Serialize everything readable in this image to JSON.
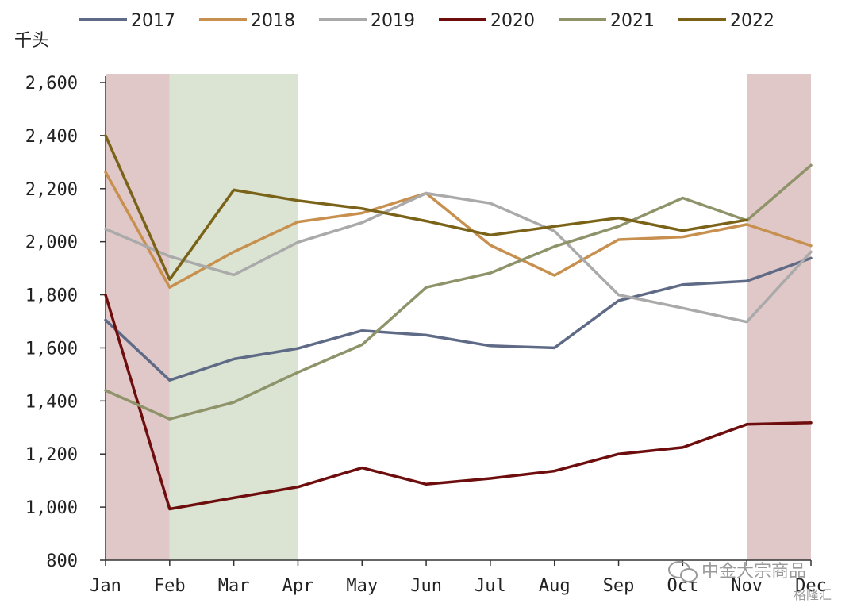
{
  "chart_data": {
    "type": "line",
    "unit_label": "千头",
    "categories": [
      "Jan",
      "Feb",
      "Mar",
      "Apr",
      "May",
      "Jun",
      "Jul",
      "Aug",
      "Sep",
      "Oct",
      "Nov",
      "Dec"
    ],
    "ylim": [
      800,
      2600
    ],
    "yticks": [
      800,
      1000,
      1200,
      1400,
      1600,
      1800,
      2000,
      2200,
      2400,
      2600
    ],
    "ytick_labels": [
      "800",
      "1,000",
      "1,200",
      "1,400",
      "1,600",
      "1,800",
      "2,000",
      "2,200",
      "2,400",
      "2,600"
    ],
    "legend_position": "top",
    "grid": false,
    "series": [
      {
        "name": "2017",
        "color": "#5e6a86",
        "values": [
          1705,
          1478,
          1558,
          1598,
          1665,
          1648,
          1608,
          1600,
          1778,
          1838,
          1852,
          1938
        ]
      },
      {
        "name": "2018",
        "color": "#c8904f",
        "values": [
          2262,
          1828,
          1962,
          2075,
          2108,
          2183,
          1987,
          1873,
          2008,
          2018,
          2065,
          1985
        ]
      },
      {
        "name": "2019",
        "color": "#aaaaaa",
        "values": [
          2048,
          1945,
          1875,
          1998,
          2072,
          2183,
          2145,
          2040,
          1800,
          1750,
          1698,
          1962
        ]
      },
      {
        "name": "2020",
        "color": "#6e0d0d",
        "values": [
          1800,
          993,
          1035,
          1076,
          1148,
          1086,
          1108,
          1136,
          1200,
          1225,
          1312,
          1318
        ]
      },
      {
        "name": "2021",
        "color": "#8f936a",
        "values": [
          1440,
          1332,
          1395,
          1508,
          1612,
          1828,
          1882,
          1982,
          2058,
          2165,
          2080,
          2288
        ]
      },
      {
        "name": "2022",
        "color": "#7a6318",
        "values": [
          2400,
          1858,
          2195,
          2155,
          2125,
          2078,
          2025,
          2058,
          2090,
          2042,
          2082,
          null
        ]
      }
    ],
    "shaded_regions": [
      {
        "from": "Jan",
        "to": "Feb",
        "color": "#e0c8c8"
      },
      {
        "from": "Feb",
        "to": "Apr",
        "color": "#dbe4d2"
      },
      {
        "from": "Nov",
        "to": "Dec",
        "color": "#e0c8c8"
      }
    ]
  },
  "watermark": {
    "text": "中金大宗商品",
    "subtext": "格隆汇"
  }
}
